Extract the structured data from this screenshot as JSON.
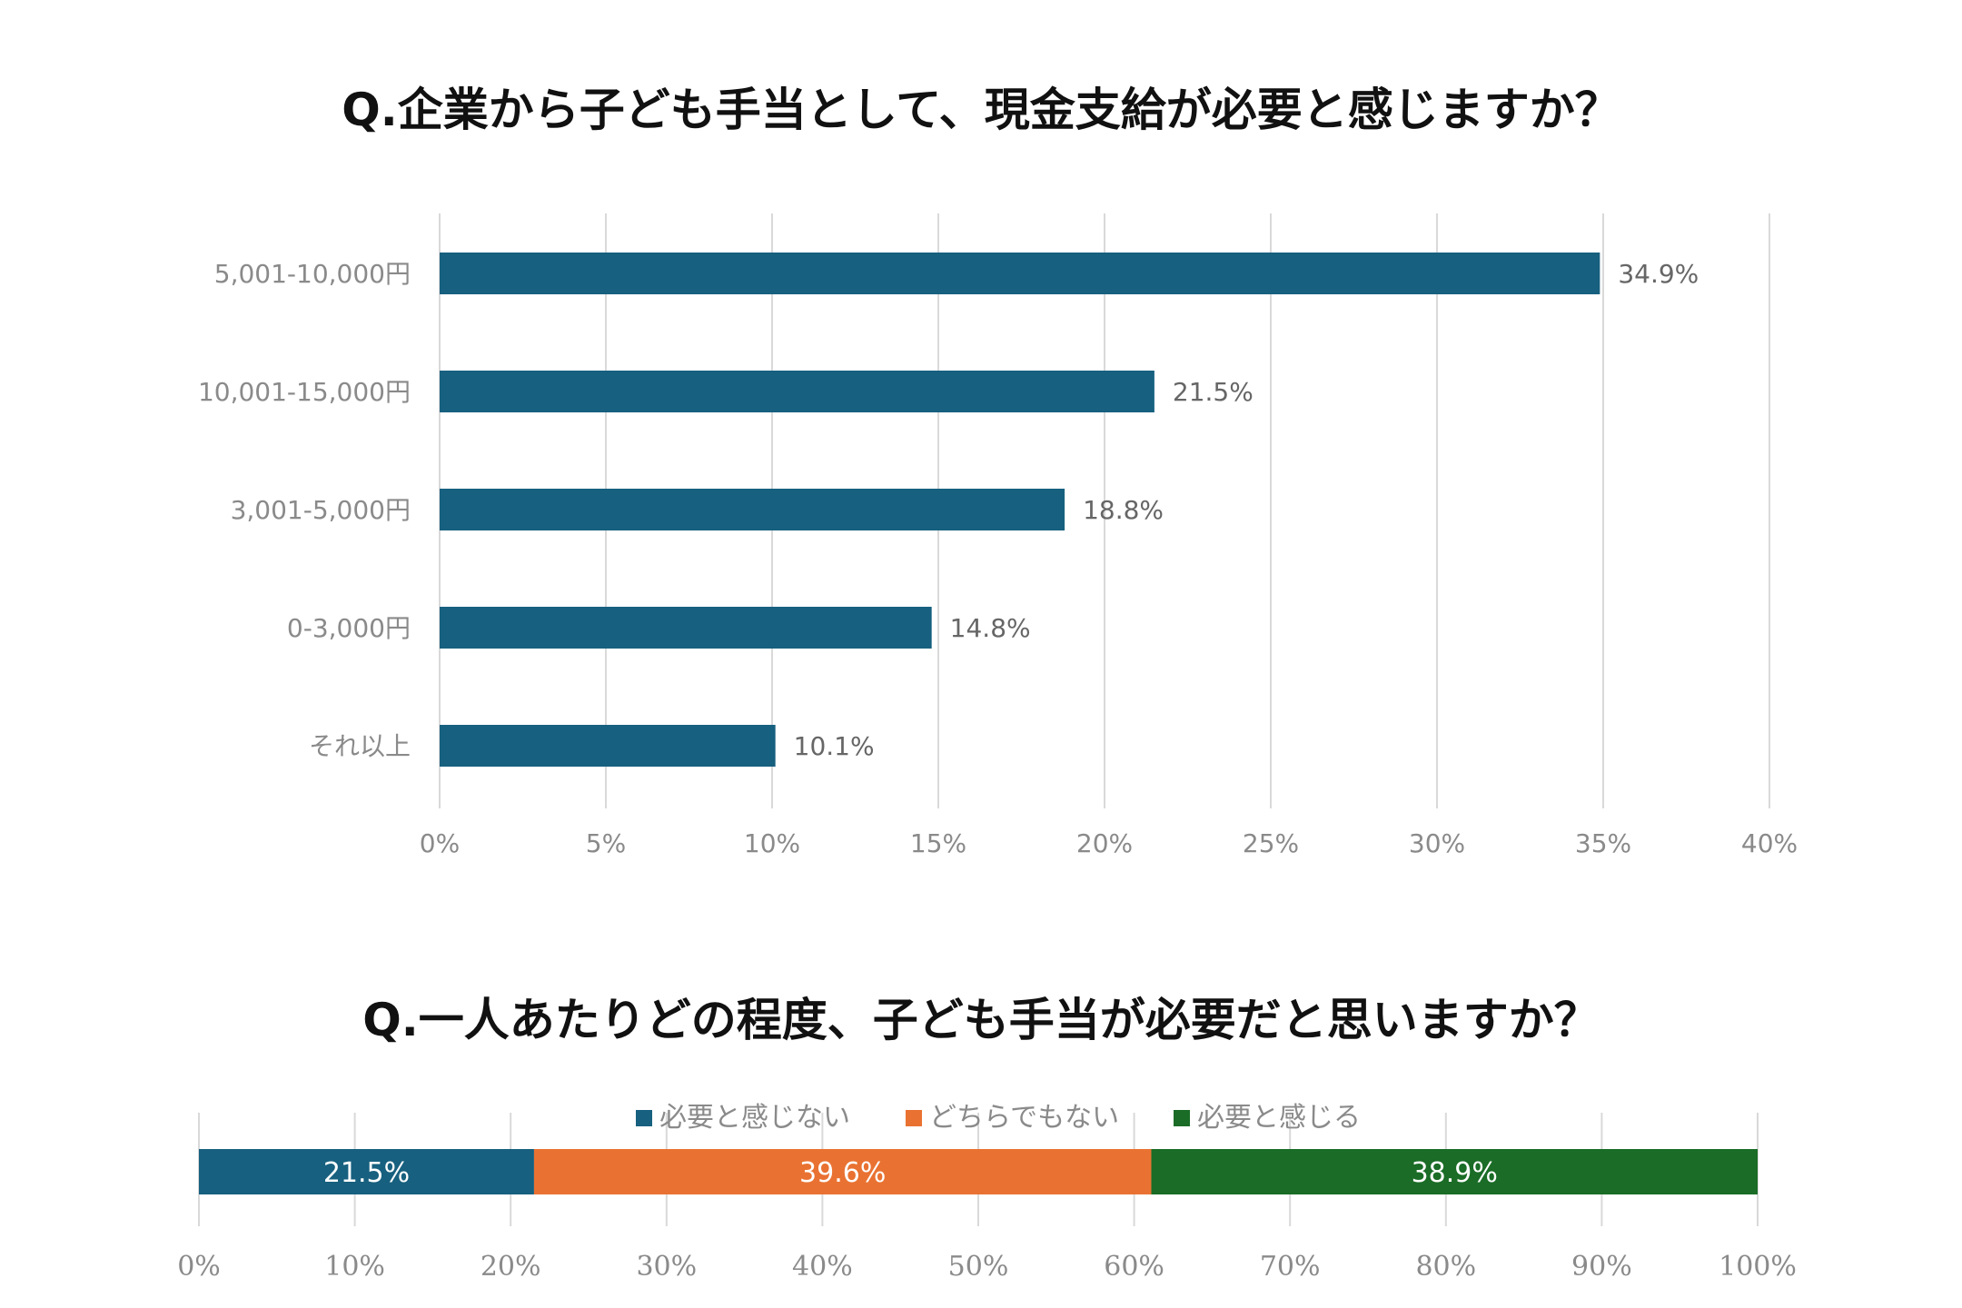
{
  "chart_data": [
    {
      "type": "bar",
      "orientation": "horizontal",
      "title": "Q.企業から子ども手当として、現金支給が必要と感じますか？",
      "categories": [
        "5,001-10,000円",
        "10,001-15,000円",
        "3,001-5,000円",
        "0-3,000円",
        "それ以上"
      ],
      "values": [
        34.9,
        21.5,
        18.8,
        14.8,
        10.1
      ],
      "data_labels": [
        "34.9%",
        "21.5%",
        "18.8%",
        "14.8%",
        "10.1%"
      ],
      "xlim": [
        0,
        40
      ],
      "xticks": [
        0,
        5,
        10,
        15,
        20,
        25,
        30,
        35,
        40
      ],
      "xtick_labels": [
        "0%",
        "5%",
        "10%",
        "15%",
        "20%",
        "25%",
        "30%",
        "35%",
        "40%"
      ],
      "grid": true,
      "color": "#17607f"
    },
    {
      "type": "stacked-bar",
      "orientation": "horizontal",
      "title": "Q.一人あたりどの程度、子ども手当が必要だと思いますか？",
      "series": [
        {
          "name": "必要と感じない",
          "value": 21.5,
          "label": "21.5%",
          "color": "#17607f"
        },
        {
          "name": "どちらでもない",
          "value": 39.6,
          "label": "39.6%",
          "color": "#e97232"
        },
        {
          "name": "必要と感じる",
          "value": 38.9,
          "label": "38.9%",
          "color": "#1a6c26"
        }
      ],
      "xlim": [
        0,
        100
      ],
      "xticks": [
        0,
        10,
        20,
        30,
        40,
        50,
        60,
        70,
        80,
        90,
        100
      ],
      "xtick_labels": [
        "0%",
        "10%",
        "20%",
        "30%",
        "40%",
        "50%",
        "60%",
        "70%",
        "80%",
        "90%",
        "100%"
      ],
      "legend": "top",
      "grid": true
    }
  ]
}
